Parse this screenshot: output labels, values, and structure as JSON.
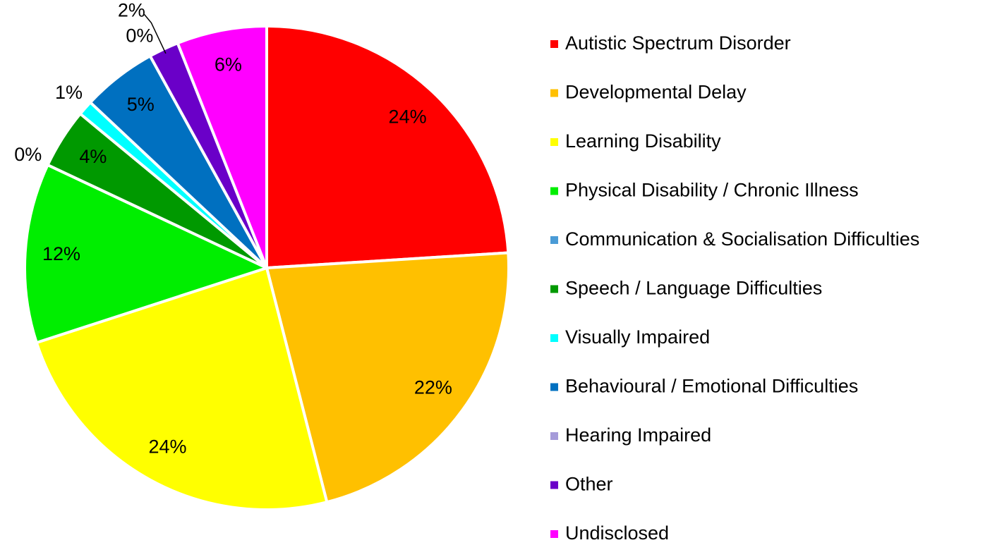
{
  "chart_data": {
    "type": "pie",
    "categories": [
      "Autistic Spectrum Disorder",
      "Developmental Delay",
      "Learning Disability",
      "Physical Disability / Chronic Illness",
      "Communication & Socialisation Difficulties",
      "Speech / Language Difficulties",
      "Visually Impaired",
      "Behavioural / Emotional Difficulties",
      "Hearing Impaired",
      "Other",
      "Undisclosed"
    ],
    "values": [
      24,
      22,
      24,
      12,
      0,
      4,
      1,
      5,
      0,
      2,
      6
    ],
    "value_labels": [
      "24%",
      "22%",
      "24%",
      "12%",
      "0%",
      "4%",
      "1%",
      "5%",
      "0%",
      "2%",
      "6%"
    ],
    "colors": [
      "#ff0000",
      "#ffc000",
      "#ffff00",
      "#00ee00",
      "#4a9bd6",
      "#009900",
      "#00ffff",
      "#0070c0",
      "#a59bd9",
      "#6a00c8",
      "#ff00ff"
    ],
    "legend": "right"
  }
}
